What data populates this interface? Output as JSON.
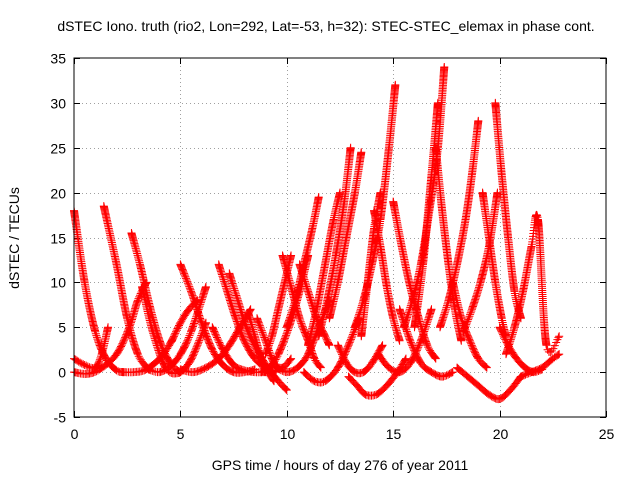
{
  "chart_data": {
    "type": "scatter",
    "title": "dSTEC Iono. truth (rio2, Lon=292, Lat=-53, h=32): STEC-STEC_elemax in phase cont.",
    "xlabel": "GPS time / hours of day 276 of year 2011",
    "ylabel": "dSTEC  / TECUs",
    "xlim": [
      0,
      25
    ],
    "ylim": [
      -5,
      35
    ],
    "xticks": [
      0,
      5,
      10,
      15,
      20,
      25
    ],
    "yticks": [
      -5,
      0,
      5,
      10,
      15,
      20,
      25,
      30,
      35
    ],
    "grid": true,
    "marker": "plus",
    "marker_color": "#ff0000",
    "series": [
      {
        "x": [
          0.0,
          0.5,
          1.0,
          1.5,
          2.0,
          2.3
        ],
        "y": [
          18.0,
          10.0,
          4.5,
          1.5,
          0.2,
          0.0
        ]
      },
      {
        "x": [
          0.0,
          0.5,
          1.0,
          1.3,
          1.6
        ],
        "y": [
          1.5,
          0.8,
          0.5,
          2.0,
          5.0
        ]
      },
      {
        "x": [
          0.0,
          0.6,
          1.2,
          2.0,
          2.6,
          3.0,
          3.4
        ],
        "y": [
          0.0,
          -0.2,
          0.3,
          2.0,
          5.0,
          8.0,
          10.0
        ]
      },
      {
        "x": [
          1.4,
          2.0,
          2.5,
          3.0,
          3.5
        ],
        "y": [
          18.5,
          12.0,
          6.0,
          2.0,
          0.3
        ]
      },
      {
        "x": [
          2.3,
          2.8,
          3.3,
          3.8,
          4.2,
          4.6
        ],
        "y": [
          0.0,
          0.0,
          0.2,
          1.0,
          2.0,
          3.5
        ]
      },
      {
        "x": [
          2.7,
          3.1,
          3.6,
          4.1,
          4.6,
          5.0
        ],
        "y": [
          15.5,
          12.0,
          7.0,
          3.0,
          0.8,
          0.0
        ]
      },
      {
        "x": [
          3.2,
          3.7,
          4.3,
          4.9,
          5.4,
          5.8,
          6.2
        ],
        "y": [
          9.5,
          4.5,
          0.5,
          -0.1,
          1.0,
          3.0,
          5.5
        ]
      },
      {
        "x": [
          3.5,
          4.0,
          4.5,
          5.0,
          5.5,
          6.2
        ],
        "y": [
          0.3,
          0.0,
          0.6,
          2.0,
          4.5,
          9.5
        ]
      },
      {
        "x": [
          4.6,
          5.0,
          5.4,
          5.8
        ],
        "y": [
          3.5,
          5.5,
          7.0,
          8.0
        ]
      },
      {
        "x": [
          5.0,
          5.5,
          6.0,
          6.5,
          7.0,
          7.5,
          8.0,
          8.5
        ],
        "y": [
          12.0,
          9.0,
          5.5,
          2.5,
          0.8,
          0.0,
          0.0,
          0.3
        ]
      },
      {
        "x": [
          5.0,
          5.6,
          6.2,
          6.8,
          7.3,
          7.8,
          8.3
        ],
        "y": [
          0.3,
          0.0,
          0.5,
          1.5,
          3.0,
          5.0,
          7.0
        ]
      },
      {
        "x": [
          6.5,
          7.0,
          7.5,
          8.0,
          8.5,
          9.0
        ],
        "y": [
          5.0,
          2.5,
          0.8,
          0.2,
          0.0,
          0.0
        ]
      },
      {
        "x": [
          6.8,
          7.2,
          7.6,
          8.0,
          8.5,
          9.0,
          9.5
        ],
        "y": [
          12.0,
          9.0,
          6.0,
          3.5,
          1.5,
          0.5,
          0.0
        ]
      },
      {
        "x": [
          7.3,
          7.7,
          8.1,
          8.6,
          9.1,
          9.6,
          10.0
        ],
        "y": [
          11.0,
          8.0,
          5.0,
          2.5,
          0.5,
          -1.0,
          -2.0
        ]
      },
      {
        "x": [
          8.2,
          8.5,
          8.8,
          9.1,
          9.4
        ],
        "y": [
          6.5,
          4.0,
          1.5,
          0.0,
          -1.0
        ]
      },
      {
        "x": [
          8.6,
          9.0,
          9.4,
          9.8,
          10.2
        ],
        "y": [
          6.0,
          3.5,
          1.0,
          0.5,
          1.5
        ]
      },
      {
        "x": [
          8.8,
          9.2,
          9.6,
          10.1,
          10.6,
          11.0
        ],
        "y": [
          0.0,
          0.5,
          2.0,
          5.0,
          9.0,
          13.0
        ]
      },
      {
        "x": [
          9.0,
          9.3,
          9.6,
          9.9,
          10.2
        ],
        "y": [
          2.0,
          4.0,
          7.0,
          10.0,
          13.0
        ]
      },
      {
        "x": [
          9.8,
          10.2,
          10.6,
          11.0,
          11.3,
          11.6
        ],
        "y": [
          13.0,
          9.5,
          6.0,
          3.5,
          1.5,
          0.5
        ]
      },
      {
        "x": [
          9.5,
          10.0,
          10.5,
          11.0,
          11.5,
          12.0
        ],
        "y": [
          0.5,
          0.0,
          0.5,
          2.0,
          5.0,
          8.0
        ]
      },
      {
        "x": [
          10.0,
          10.4,
          10.8,
          11.2,
          11.5
        ],
        "y": [
          5.0,
          8.0,
          12.0,
          16.0,
          19.5
        ]
      },
      {
        "x": [
          10.6,
          11.0,
          11.4,
          11.8,
          12.0
        ],
        "y": [
          12.0,
          9.0,
          6.0,
          4.0,
          3.0
        ]
      },
      {
        "x": [
          10.8,
          11.3,
          11.8,
          12.4,
          12.9,
          13.4
        ],
        "y": [
          0.0,
          -1.0,
          -1.0,
          0.5,
          3.0,
          6.0
        ]
      },
      {
        "x": [
          11.0,
          11.4,
          11.8,
          12.2,
          12.5
        ],
        "y": [
          3.0,
          7.0,
          12.0,
          17.0,
          20.0
        ]
      },
      {
        "x": [
          11.5,
          11.9,
          12.3,
          12.7,
          13.0
        ],
        "y": [
          4.0,
          8.0,
          13.0,
          19.0,
          25.0
        ]
      },
      {
        "x": [
          12.0,
          12.4,
          12.8,
          13.2,
          13.5
        ],
        "y": [
          6.0,
          10.0,
          15.0,
          20.0,
          24.5
        ]
      },
      {
        "x": [
          12.4,
          12.8,
          13.2,
          13.6,
          14.0,
          14.5
        ],
        "y": [
          3.0,
          1.0,
          0.0,
          0.0,
          1.0,
          3.0
        ]
      },
      {
        "x": [
          12.9,
          13.3,
          13.7,
          14.2,
          14.7,
          15.2,
          15.6
        ],
        "y": [
          -0.5,
          -1.5,
          -2.5,
          -2.5,
          -1.5,
          0.0,
          1.5
        ]
      },
      {
        "x": [
          13.2,
          13.6,
          14.0,
          14.4,
          14.8,
          15.1
        ],
        "y": [
          5.0,
          8.0,
          12.0,
          17.0,
          25.0,
          32.0
        ]
      },
      {
        "x": [
          13.5,
          13.8,
          14.1,
          14.4
        ],
        "y": [
          4.0,
          10.0,
          16.0,
          20.0
        ]
      },
      {
        "x": [
          14.1,
          14.4,
          14.7,
          15.0,
          15.3
        ],
        "y": [
          18.0,
          14.0,
          9.5,
          6.0,
          3.5
        ]
      },
      {
        "x": [
          14.3,
          14.8,
          15.3,
          15.8,
          16.3,
          16.8
        ],
        "y": [
          2.0,
          0.5,
          0.0,
          1.0,
          3.5,
          7.0
        ]
      },
      {
        "x": [
          15.0,
          15.4,
          15.8,
          16.2,
          16.6,
          17.0
        ],
        "y": [
          19.0,
          14.0,
          9.5,
          6.0,
          3.0,
          1.5
        ]
      },
      {
        "x": [
          15.3,
          15.8,
          16.3,
          16.8,
          17.3,
          17.8
        ],
        "y": [
          7.0,
          3.5,
          1.0,
          0.0,
          -0.5,
          0.0
        ]
      },
      {
        "x": [
          15.5,
          15.9,
          16.3,
          16.7,
          17.1,
          17.4
        ],
        "y": [
          5.0,
          8.0,
          12.0,
          18.0,
          25.0,
          34.0
        ]
      },
      {
        "x": [
          16.0,
          16.4,
          16.8,
          17.1
        ],
        "y": [
          5.0,
          12.0,
          22.0,
          30.0
        ]
      },
      {
        "x": [
          17.0,
          17.3,
          17.6,
          17.9,
          18.2
        ],
        "y": [
          25.0,
          18.0,
          12.0,
          7.0,
          3.5
        ]
      },
      {
        "x": [
          17.2,
          17.6,
          18.0,
          18.4,
          18.7,
          19.0
        ],
        "y": [
          5.0,
          8.0,
          12.0,
          17.0,
          22.0,
          28.0
        ]
      },
      {
        "x": [
          17.8,
          18.2,
          18.6,
          19.0,
          19.4
        ],
        "y": [
          10.0,
          6.0,
          3.5,
          1.5,
          0.5
        ]
      },
      {
        "x": [
          18.0,
          18.5,
          19.0,
          19.5,
          20.0,
          20.5,
          21.0
        ],
        "y": [
          0.5,
          -0.5,
          -1.5,
          -2.5,
          -3.0,
          -2.0,
          -0.5
        ]
      },
      {
        "x": [
          18.3,
          18.7,
          19.1,
          19.5,
          19.9
        ],
        "y": [
          4.5,
          7.0,
          10.0,
          14.0,
          20.0
        ]
      },
      {
        "x": [
          19.2,
          19.5,
          19.8,
          20.1,
          20.3
        ],
        "y": [
          20.0,
          15.0,
          10.0,
          6.0,
          4.0
        ]
      },
      {
        "x": [
          19.8,
          20.1,
          20.4,
          20.7,
          21.0
        ],
        "y": [
          30.0,
          22.0,
          15.0,
          9.0,
          6.0
        ]
      },
      {
        "x": [
          20.0,
          20.4,
          20.8,
          21.2,
          21.6,
          22.0
        ],
        "y": [
          5.0,
          3.0,
          1.5,
          0.5,
          0.0,
          0.3
        ]
      },
      {
        "x": [
          20.3,
          20.7,
          21.1,
          21.5,
          21.8,
          22.2,
          22.8
        ],
        "y": [
          2.0,
          5.0,
          9.0,
          14.0,
          17.0,
          3.0,
          4.0
        ]
      },
      {
        "x": [
          21.0,
          21.5,
          22.0,
          22.5,
          22.8
        ],
        "y": [
          -0.5,
          0.0,
          0.5,
          1.5,
          2.0
        ]
      }
    ]
  }
}
